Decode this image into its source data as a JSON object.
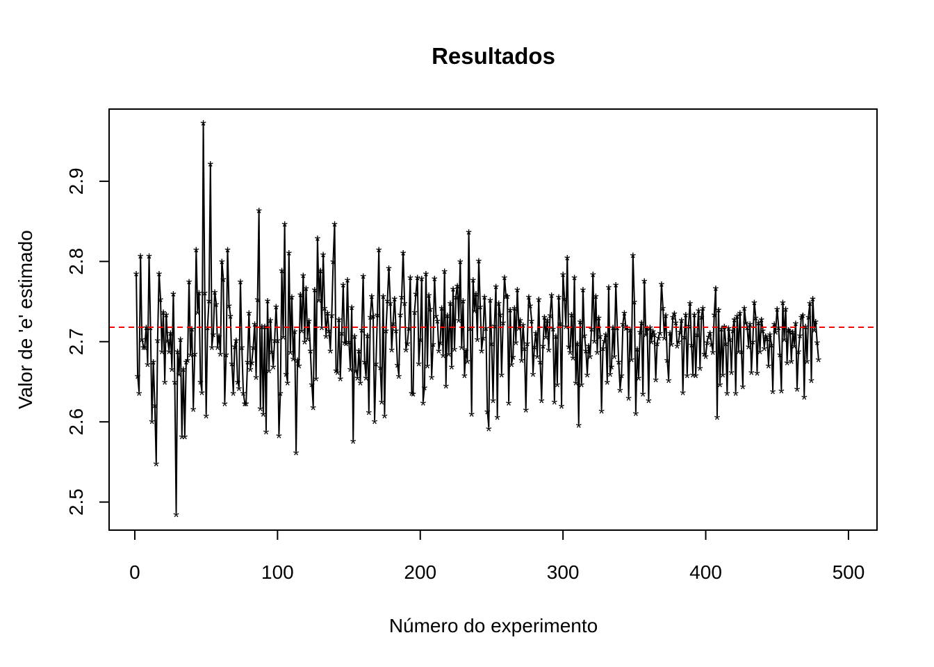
{
  "chart_data": {
    "type": "line",
    "title": "Resultados",
    "xlabel": "Número do experimento",
    "ylabel": "Valor de 'e' estimado",
    "xlim": [
      -18,
      520
    ],
    "ylim": [
      2.465,
      2.99
    ],
    "x_ticks": [
      0,
      100,
      200,
      300,
      400,
      500
    ],
    "y_ticks": [
      2.5,
      2.6,
      2.7,
      2.8,
      2.9
    ],
    "x_tick_labels": [
      "0",
      "100",
      "200",
      "300",
      "400",
      "500"
    ],
    "y_tick_labels": [
      "2.5",
      "2.6",
      "2.7",
      "2.8",
      "2.9"
    ],
    "reference_line": {
      "y": 2.718,
      "color": "#ff0000",
      "style": "dashed"
    },
    "series": [
      {
        "style": "line+asterisk",
        "color": "#000000",
        "n_points": 500,
        "x_start": 1,
        "y": [
          2.786,
          2.658,
          2.637,
          2.808,
          2.704,
          2.694,
          2.694,
          2.719,
          2.673,
          2.808,
          2.719,
          2.602,
          2.676,
          2.622,
          2.549,
          2.703,
          2.786,
          2.754,
          2.689,
          2.738,
          2.651,
          2.735,
          2.703,
          2.689,
          2.712,
          2.667,
          2.761,
          2.651,
          2.486,
          2.689,
          2.661,
          2.704,
          2.583,
          2.667,
          2.583,
          2.676,
          2.678,
          2.776,
          2.685,
          2.717,
          2.617,
          2.686,
          2.816,
          2.738,
          2.762,
          2.651,
          2.638,
          2.974,
          2.762,
          2.609,
          2.719,
          2.752,
          2.923,
          2.694,
          2.71,
          2.763,
          2.748,
          2.694,
          2.708,
          2.686,
          2.801,
          2.779,
          2.624,
          2.685,
          2.816,
          2.746,
          2.733,
          2.674,
          2.637,
          2.695,
          2.703,
          2.651,
          2.643,
          2.776,
          2.694,
          2.637,
          2.624,
          2.624,
          2.676,
          2.737,
          2.667,
          2.675,
          2.694,
          2.723,
          2.657,
          2.754,
          2.865,
          2.618,
          2.72,
          2.611,
          2.72,
          2.589,
          2.752,
          2.665,
          2.728,
          2.689,
          2.67,
          2.703,
          2.745,
          2.703,
          2.584,
          2.637,
          2.79,
          2.707,
          2.848,
          2.661,
          2.65,
          2.812,
          2.688,
          2.757,
          2.68,
          2.714,
          2.563,
          2.678,
          2.671,
          2.76,
          2.715,
          2.784,
          2.701,
          2.768,
          2.705,
          2.727,
          2.69,
          2.648,
          2.619,
          2.766,
          2.655,
          2.83,
          2.753,
          2.79,
          2.719,
          2.81,
          2.743,
          2.708,
          2.737,
          2.715,
          2.69,
          2.734,
          2.801,
          2.848,
          2.665,
          2.663,
          2.729,
          2.655,
          2.712,
          2.772,
          2.7,
          2.699,
          2.778,
          2.701,
          2.667,
          2.744,
          2.577,
          2.708,
          2.665,
          2.656,
          2.69,
          2.65,
          2.716,
          2.783,
          2.676,
          2.656,
          2.709,
          2.613,
          2.732,
          2.758,
          2.733,
          2.602,
          2.674,
          2.735,
          2.816,
          2.669,
          2.626,
          2.758,
          2.609,
          2.715,
          2.752,
          2.793,
          2.749,
          2.691,
          2.724,
          2.755,
          2.715,
          2.672,
          2.658,
          2.735,
          2.757,
          2.812,
          2.749,
          2.691,
          2.699,
          2.718,
          2.781,
          2.637,
          2.636,
          2.738,
          2.761,
          2.781,
          2.674,
          2.704,
          2.78,
          2.625,
          2.644,
          2.786,
          2.671,
          2.759,
          2.742,
          2.657,
          2.698,
          2.78,
          2.733,
          2.727,
          2.69,
          2.7,
          2.743,
          2.684,
          2.789,
          2.646,
          2.734,
          2.686,
          2.749,
          2.67,
          2.767,
          2.692,
          2.757,
          2.771,
          2.728,
          2.801,
          2.694,
          2.752,
          2.659,
          2.69,
          2.677,
          2.838,
          2.718,
          2.611,
          2.778,
          2.74,
          2.761,
          2.704,
          2.802,
          2.745,
          2.69,
          2.706,
          2.757,
          2.718,
          2.614,
          2.593,
          2.753,
          2.699,
          2.628,
          2.721,
          2.77,
          2.607,
          2.749,
          2.735,
          2.66,
          2.725,
          2.781,
          2.758,
          2.758,
          2.625,
          2.741,
          2.673,
          2.682,
          2.743,
          2.7,
          2.766,
          2.718,
          2.728,
          2.678,
          2.722,
          2.693,
          2.616,
          2.699,
          2.757,
          2.746,
          2.727,
          2.661,
          2.695,
          2.712,
          2.683,
          2.754,
          2.676,
          2.628,
          2.696,
          2.732,
          2.707,
          2.728,
          2.691,
          2.734,
          2.759,
          2.717,
          2.626,
          2.708,
          2.648,
          2.757,
          2.724,
          2.621,
          2.785,
          2.755,
          2.72,
          2.806,
          2.695,
          2.688,
          2.735,
          2.681,
          2.781,
          2.65,
          2.699,
          2.597,
          2.726,
          2.648,
          2.766,
          2.709,
          2.69,
          2.66,
          2.696,
          2.683,
          2.717,
          2.785,
          2.702,
          2.758,
          2.688,
          2.731,
          2.708,
          2.615,
          2.693,
          2.702,
          2.71,
          2.651,
          2.769,
          2.661,
          2.67,
          2.719,
          2.683,
          2.772,
          2.719,
          2.676,
          2.641,
          2.659,
          2.723,
          2.737,
          2.718,
          2.719,
          2.631,
          2.716,
          2.679,
          2.809,
          2.751,
          2.612,
          2.692,
          2.656,
          2.713,
          2.725,
          2.636,
          2.777,
          2.71,
          2.718,
          2.628,
          2.719,
          2.701,
          2.714,
          2.71,
          2.654,
          2.699,
          2.706,
          2.712,
          2.773,
          2.743,
          2.706,
          2.734,
          2.678,
          2.653,
          2.712,
          2.698,
          2.732,
          2.736,
          2.725,
          2.696,
          2.701,
          2.713,
          2.728,
          2.638,
          2.707,
          2.735,
          2.659,
          2.721,
          2.749,
          2.697,
          2.66,
          2.735,
          2.659,
          2.71,
          2.74,
          2.668,
          2.732,
          2.743,
          2.686,
          2.683,
          2.7,
          2.707,
          2.712,
          2.698,
          2.688,
          2.735,
          2.768,
          2.607,
          2.741,
          2.648,
          2.717,
          2.66,
          2.72,
          2.699,
          2.637,
          2.718,
          2.704,
          2.663,
          2.715,
          2.729,
          2.637,
          2.733,
          2.689,
          2.737,
          2.689,
          2.645,
          2.743,
          2.725,
          2.719,
          2.695,
          2.723,
          2.663,
          2.701,
          2.75,
          2.731,
          2.662,
          2.725,
          2.689,
          2.729,
          2.715,
          2.693,
          2.708,
          2.705,
          2.671,
          2.71,
          2.697,
          2.639,
          2.723,
          2.713,
          2.742,
          2.719,
          2.685,
          2.64,
          2.75,
          2.704,
          2.742,
          2.675,
          2.716,
          2.714,
          2.677,
          2.713,
          2.696,
          2.724,
          2.642,
          2.689,
          2.709,
          2.732,
          2.734,
          2.632,
          2.72,
          2.677,
          2.732,
          2.749,
          2.653,
          2.755,
          2.716,
          2.726,
          2.7,
          2.679
        ]
      }
    ]
  }
}
